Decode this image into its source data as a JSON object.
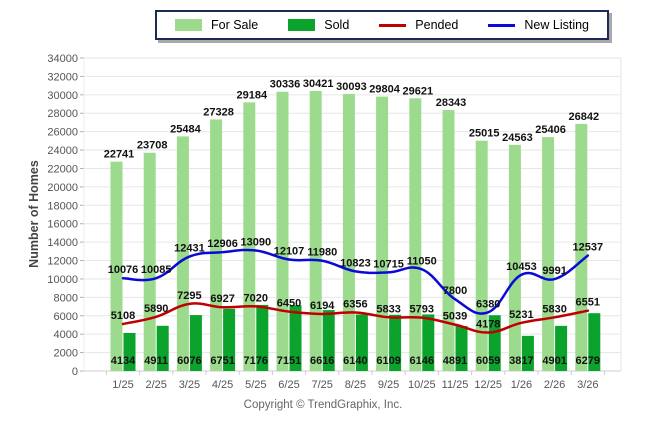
{
  "legend": {
    "items": [
      {
        "label": "For Sale",
        "type": "bar",
        "color": "#9cdb8d"
      },
      {
        "label": "Sold",
        "type": "bar",
        "color": "#0ba32b"
      },
      {
        "label": "Pended",
        "type": "line",
        "color": "#c00000"
      },
      {
        "label": "New Listing",
        "type": "line",
        "color": "#0a0ad8"
      }
    ]
  },
  "footer": {
    "copyright": "Copyright © TrendGraphix, Inc."
  },
  "chart_data": {
    "type": "combo",
    "title": "",
    "xlabel": "",
    "ylabel": "Number of Homes",
    "ylim": [
      0,
      34000
    ],
    "ytick_step": 2000,
    "yticks": [
      0,
      2000,
      4000,
      6000,
      8000,
      10000,
      12000,
      14000,
      16000,
      18000,
      20000,
      22000,
      24000,
      26000,
      28000,
      30000,
      32000,
      34000
    ],
    "grid": true,
    "legend_position": "top",
    "categories": [
      "1/25",
      "2/25",
      "3/25",
      "4/25",
      "5/25",
      "6/25",
      "7/25",
      "8/25",
      "9/25",
      "10/25",
      "11/25",
      "12/25",
      "1/26",
      "2/26",
      "3/26"
    ],
    "series": [
      {
        "name": "For Sale",
        "type": "bar",
        "color": "#9cdb8d",
        "values": [
          22741,
          23708,
          25484,
          27328,
          29184,
          30336,
          30421,
          30093,
          29804,
          29621,
          28343,
          25015,
          24563,
          25406,
          26842
        ]
      },
      {
        "name": "Sold",
        "type": "bar",
        "color": "#0ba32b",
        "values": [
          4134,
          4911,
          6076,
          6751,
          7176,
          7151,
          6616,
          6140,
          6109,
          6146,
          4891,
          6059,
          3817,
          4901,
          6279
        ]
      },
      {
        "name": "Pended",
        "type": "line",
        "color": "#c00000",
        "values": [
          5108,
          5890,
          7295,
          6927,
          7020,
          6450,
          6194,
          6356,
          5833,
          5793,
          5039,
          4178,
          5231,
          5830,
          6551
        ]
      },
      {
        "name": "New Listing",
        "type": "line",
        "color": "#0a0ad8",
        "values": [
          10076,
          10085,
          12431,
          12906,
          13090,
          12107,
          11980,
          10823,
          10715,
          11050,
          7800,
          6380,
          10453,
          9991,
          12537
        ]
      }
    ]
  }
}
